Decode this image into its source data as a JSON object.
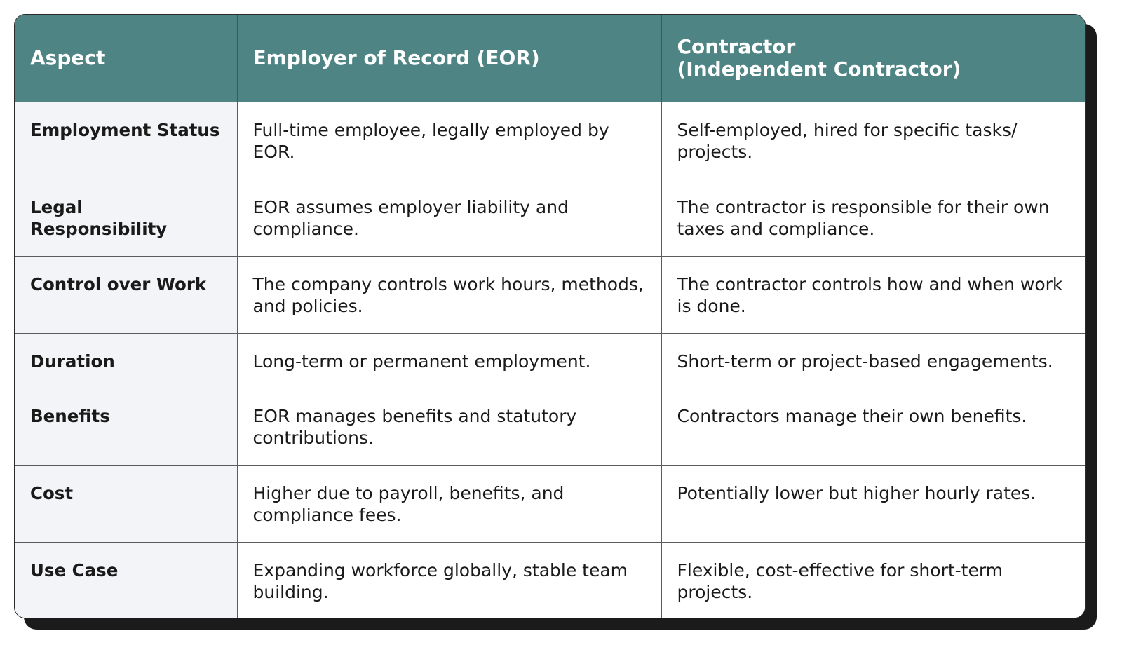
{
  "headers": {
    "aspect": "Aspect",
    "eor": "Employer of Record (EOR)",
    "contractor_line1": "Contractor",
    "contractor_line2": "(Independent Contractor)"
  },
  "rows": [
    {
      "aspect": "Employment Status",
      "eor": "Full-time employee, legally employed by EOR.",
      "contractor": "Self-employed, hired for specific tasks/ projects."
    },
    {
      "aspect": "Legal Responsibility",
      "eor": "EOR assumes employer liability and compliance.",
      "contractor": "The contractor is responsible for their own taxes and compliance."
    },
    {
      "aspect": "Control over Work",
      "eor": "The company controls work hours, methods, and policies.",
      "contractor": "The contractor controls how and when work is done."
    },
    {
      "aspect": "Duration",
      "eor": "Long-term or permanent employment.",
      "contractor": "Short-term or project-based engagements."
    },
    {
      "aspect": "Benefits",
      "eor": "EOR manages benefits and statutory contributions.",
      "contractor": "Contractors manage their own benefits."
    },
    {
      "aspect": "Cost",
      "eor": "Higher due to payroll, benefits, and compliance fees.",
      "contractor": "Potentially lower but higher hourly rates."
    },
    {
      "aspect": "Use Case",
      "eor": "Expanding workforce globally, stable team building.",
      "contractor": "Flexible, cost-effective for short-term projects."
    }
  ],
  "colors": {
    "header_bg": "#4e8484",
    "header_text": "#ffffff",
    "aspect_col_bg": "#f3f4f7",
    "shadow": "#1b1b1b"
  }
}
